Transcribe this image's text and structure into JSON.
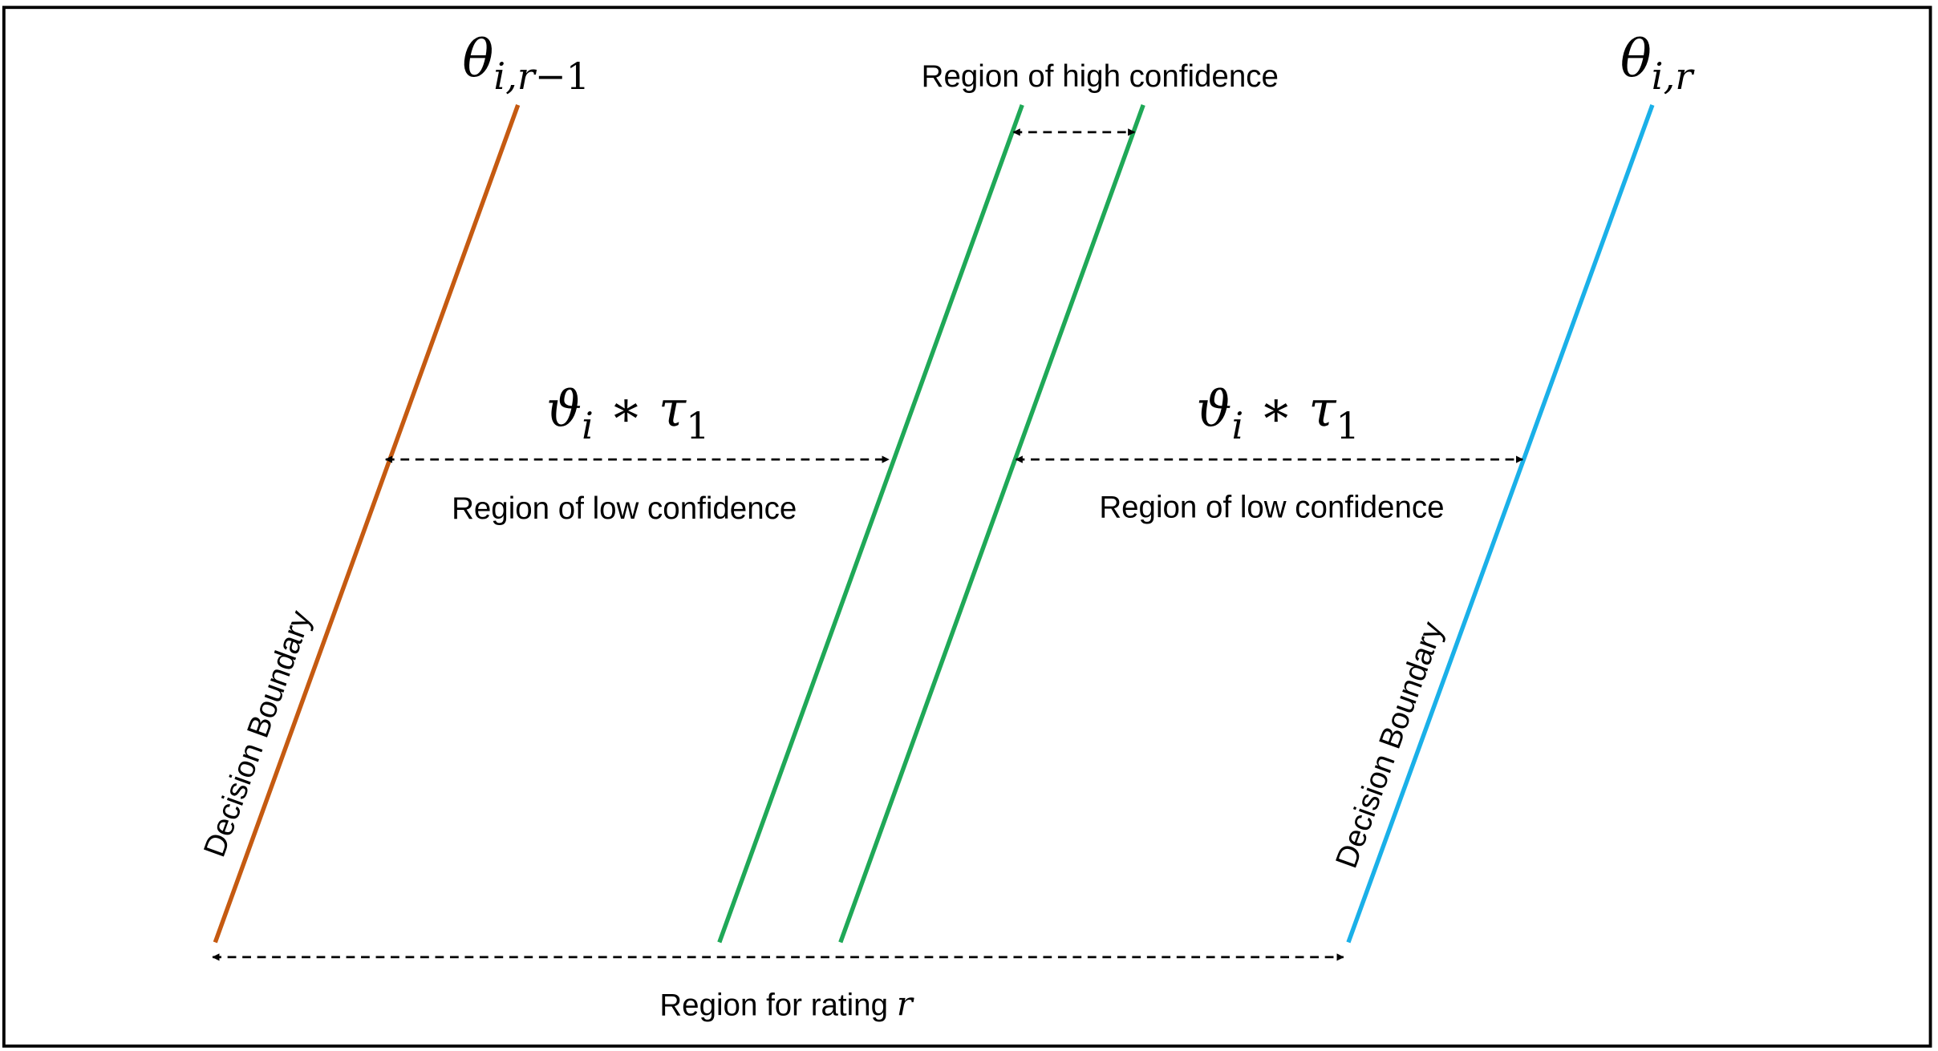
{
  "colors": {
    "left_boundary": "#c55a11",
    "confidence_lines": "#1fa857",
    "right_boundary": "#1ab0e8",
    "arrows": "#000000",
    "frame": "#000000"
  },
  "labels": {
    "theta_left": {
      "base": "θ",
      "sub": "i,r",
      "sub_minus": "−1"
    },
    "theta_right": {
      "base": "θ",
      "sub": "i,r"
    },
    "high_confidence": "Region of high confidence",
    "low_confidence_left": "Region of low confidence",
    "low_confidence_right": "Region of low confidence",
    "width_left": {
      "base": "ϑ",
      "sub": "i",
      "op": " ∗ ",
      "tau": "τ",
      "tau_sub": "1"
    },
    "width_right": {
      "base": "ϑ",
      "sub": "i",
      "op": " ∗ ",
      "tau": "τ",
      "tau_sub": "1"
    },
    "decision_boundary_left": "Decision Boundary",
    "decision_boundary_right": "Decision Boundary",
    "rating_region": {
      "text": "Region for rating ",
      "var": "r"
    }
  }
}
